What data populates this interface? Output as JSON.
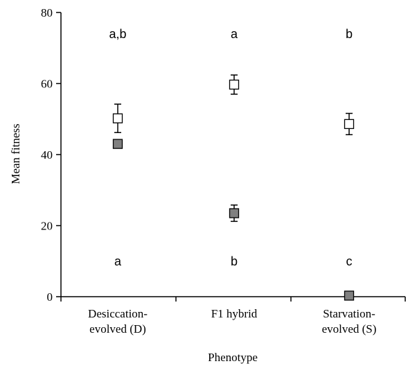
{
  "chart_data": {
    "type": "scatter",
    "title": "",
    "xlabel": "Phenotype",
    "ylabel": "Mean fitness",
    "ylim": [
      0,
      80
    ],
    "yticks": [
      0,
      20,
      40,
      60,
      80
    ],
    "grid": false,
    "legend": "none",
    "categories": [
      [
        "Desiccation-",
        "evolved (D)"
      ],
      [
        "F1 hybrid"
      ],
      [
        "Starvation-",
        "evolved (S)"
      ]
    ],
    "series": [
      {
        "marker": "open-square",
        "color": "#ffffff",
        "values": [
          50.2,
          59.7,
          48.6
        ],
        "errors": [
          4.0,
          2.7,
          3.0
        ],
        "significance_labels": [
          "a,b",
          "a",
          "b"
        ],
        "significance_y": 74
      },
      {
        "marker": "filled-square",
        "color": "#808080",
        "values": [
          43.0,
          23.5,
          0.3
        ],
        "errors": [
          0,
          2.3,
          0
        ],
        "significance_labels": [
          "a",
          "b",
          "c"
        ],
        "significance_y": 10
      }
    ]
  }
}
